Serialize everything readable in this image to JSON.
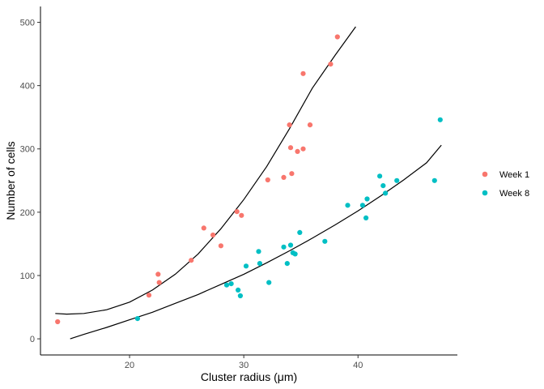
{
  "chart_data": {
    "type": "scatter",
    "title": "",
    "xlabel": "Cluster radius (μm)",
    "ylabel": "Number of cells",
    "xlim": [
      12.2,
      48.7
    ],
    "ylim": [
      -25.5,
      525
    ],
    "x_ticks": [
      20,
      30,
      40
    ],
    "y_ticks": [
      0,
      100,
      200,
      300,
      400,
      500
    ],
    "grid": false,
    "legend_position": "right",
    "series": [
      {
        "name": "Week 1",
        "color": "#F8766D",
        "points": [
          [
            13.7,
            27
          ],
          [
            21.7,
            69
          ],
          [
            22.5,
            102
          ],
          [
            22.6,
            89
          ],
          [
            25.4,
            124
          ],
          [
            26.5,
            175
          ],
          [
            27.3,
            164
          ],
          [
            28.0,
            147
          ],
          [
            29.4,
            201
          ],
          [
            29.8,
            195
          ],
          [
            32.1,
            251
          ],
          [
            33.5,
            255
          ],
          [
            34.0,
            338
          ],
          [
            34.1,
            302
          ],
          [
            34.2,
            261
          ],
          [
            34.7,
            296
          ],
          [
            35.2,
            419
          ],
          [
            35.2,
            300
          ],
          [
            35.8,
            338
          ],
          [
            37.6,
            434
          ],
          [
            38.2,
            477
          ]
        ],
        "trend": [
          [
            13.5,
            40
          ],
          [
            14.5,
            39
          ],
          [
            16,
            40
          ],
          [
            18,
            46
          ],
          [
            20,
            58
          ],
          [
            22,
            77
          ],
          [
            24,
            102
          ],
          [
            26,
            134
          ],
          [
            28,
            174
          ],
          [
            30,
            220
          ],
          [
            32,
            272
          ],
          [
            34,
            332
          ],
          [
            36,
            396
          ],
          [
            38,
            448
          ],
          [
            39.8,
            493
          ]
        ]
      },
      {
        "name": "Week 8",
        "color": "#00BFC4",
        "points": [
          [
            20.7,
            32
          ],
          [
            28.5,
            85
          ],
          [
            28.9,
            87
          ],
          [
            29.5,
            77
          ],
          [
            29.7,
            68
          ],
          [
            30.2,
            115
          ],
          [
            31.3,
            138
          ],
          [
            31.4,
            119
          ],
          [
            32.2,
            89
          ],
          [
            33.5,
            145
          ],
          [
            33.8,
            119
          ],
          [
            34.1,
            148
          ],
          [
            34.3,
            136
          ],
          [
            34.5,
            134
          ],
          [
            34.9,
            168
          ],
          [
            37.1,
            154
          ],
          [
            39.1,
            211
          ],
          [
            40.4,
            211
          ],
          [
            40.7,
            191
          ],
          [
            40.8,
            221
          ],
          [
            41.9,
            257
          ],
          [
            42.2,
            242
          ],
          [
            42.4,
            230
          ],
          [
            43.4,
            250
          ],
          [
            46.7,
            250
          ],
          [
            47.2,
            346
          ]
        ],
        "trend": [
          [
            14.8,
            0
          ],
          [
            16,
            7
          ],
          [
            18,
            18
          ],
          [
            20,
            30
          ],
          [
            22,
            42
          ],
          [
            24,
            56
          ],
          [
            26,
            70
          ],
          [
            28,
            86
          ],
          [
            30,
            102
          ],
          [
            32,
            120
          ],
          [
            34,
            139
          ],
          [
            36,
            159
          ],
          [
            38,
            180
          ],
          [
            40,
            202
          ],
          [
            42,
            226
          ],
          [
            44,
            251
          ],
          [
            46,
            278
          ],
          [
            47.3,
            306
          ]
        ]
      }
    ]
  }
}
